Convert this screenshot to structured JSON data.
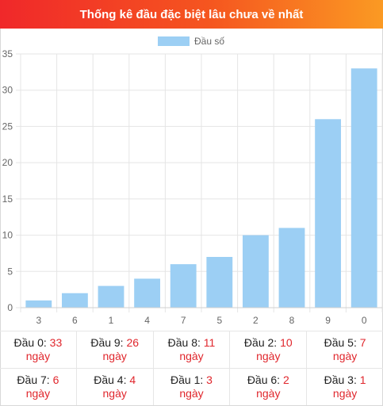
{
  "header": {
    "title": "Thống kê đầu đặc biệt lâu chưa về nhất"
  },
  "colors": {
    "bar": "#9ccff4",
    "accent": "#e0262c"
  },
  "chart_data": {
    "type": "bar",
    "categories": [
      "3",
      "6",
      "1",
      "4",
      "7",
      "5",
      "2",
      "8",
      "9",
      "0"
    ],
    "series": [
      {
        "name": "Đầu số",
        "values": [
          1,
          2,
          3,
          4,
          6,
          7,
          10,
          11,
          26,
          33
        ]
      }
    ],
    "title": "",
    "xlabel": "",
    "ylabel": "",
    "ylim": [
      0,
      35
    ],
    "yticks": [
      0,
      5,
      10,
      15,
      20,
      25,
      30,
      35
    ],
    "grid": true,
    "legend": "top-center"
  },
  "stats": {
    "unit": "ngày",
    "rows": [
      [
        {
          "label": "Đầu 0:",
          "value": "33"
        },
        {
          "label": "Đầu 9:",
          "value": "26"
        },
        {
          "label": "Đầu 8:",
          "value": "11"
        },
        {
          "label": "Đầu 2:",
          "value": "10"
        },
        {
          "label": "Đầu 5:",
          "value": "7"
        }
      ],
      [
        {
          "label": "Đầu 7:",
          "value": "6"
        },
        {
          "label": "Đầu 4:",
          "value": "4"
        },
        {
          "label": "Đầu 1:",
          "value": "3"
        },
        {
          "label": "Đầu 6:",
          "value": "2"
        },
        {
          "label": "Đầu 3:",
          "value": "1"
        }
      ]
    ]
  }
}
